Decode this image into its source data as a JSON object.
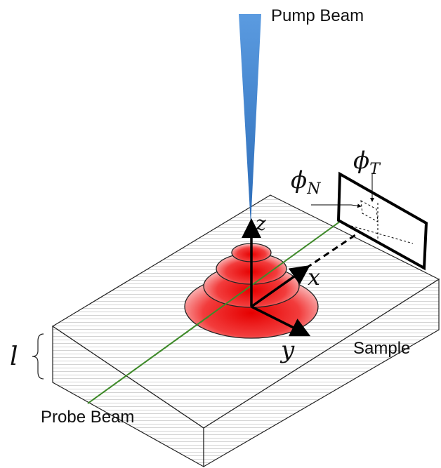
{
  "labels": {
    "pump_beam": "Pump Beam",
    "probe_beam": "Probe Beam",
    "sample": "Sample",
    "phi_t": {
      "symbol": "ϕ",
      "subscript": "T"
    },
    "phi_n": {
      "symbol": "ϕ",
      "subscript": "N"
    },
    "x": "x",
    "y": "y",
    "z": "z",
    "thickness": "l"
  }
}
